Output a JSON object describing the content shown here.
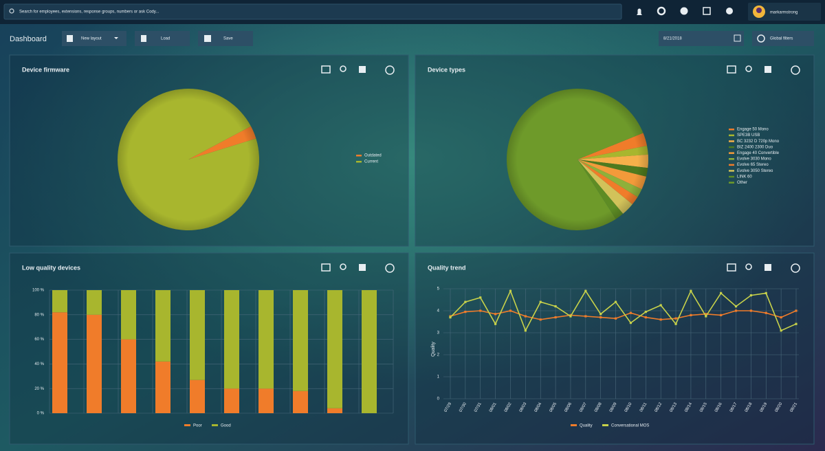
{
  "header": {
    "search_placeholder": "Search for employees, extensions, response groups, numbers or ask Cody...",
    "user_name": "markarmstrong"
  },
  "toolbar": {
    "title": "Dashboard",
    "new_layout": "New layout",
    "load": "Load",
    "save": "Save",
    "date": "8/21/2018",
    "global_filters": "Global filters"
  },
  "chart_data": [
    {
      "type": "pie",
      "title": "Device firmware",
      "categories": [
        "Outdated",
        "Current"
      ],
      "values": [
        3,
        97
      ],
      "colors": [
        "#f07c2a",
        "#a8b62e"
      ],
      "legend": "right"
    },
    {
      "type": "pie",
      "title": "Device types",
      "categories": [
        "Engage 50 Mono",
        "SPE3B USB",
        "BC 3232 D 720p Mono",
        "BIZ 2400 2300 Duo",
        "Engage 40 Convertible",
        "Evolve 3030 Mono",
        "Evolve 65 Stereo",
        "Evolve 3050 Stereo",
        "LINK 60",
        "Other"
      ],
      "values": [
        3,
        2,
        3,
        2,
        3,
        2,
        2,
        3,
        2,
        78
      ],
      "colors": [
        "#f07c2a",
        "#a8b62e",
        "#f6b04a",
        "#4f7a1e",
        "#f39a3a",
        "#8fb03a",
        "#f07c2a",
        "#d2c25a",
        "#5e8c24",
        "#6e9a2a"
      ],
      "legend": "right"
    },
    {
      "type": "bar",
      "title": "Low quality devices",
      "stacked": true,
      "series": [
        {
          "name": "Poor",
          "color": "#f07c2a",
          "values": [
            82,
            80,
            60,
            42,
            27,
            20,
            20,
            18,
            4,
            0
          ]
        },
        {
          "name": "Good",
          "color": "#a8b62e",
          "values": [
            18,
            20,
            40,
            58,
            73,
            80,
            80,
            82,
            96,
            100
          ]
        }
      ],
      "ylim": [
        0,
        100
      ],
      "yticks": [
        {
          "value": 0,
          "label": "0 %"
        },
        {
          "value": 20,
          "label": "20 %"
        },
        {
          "value": 40,
          "label": "40 %"
        },
        {
          "value": 60,
          "label": "60 %"
        },
        {
          "value": 80,
          "label": "80 %"
        },
        {
          "value": 100,
          "label": "100 %"
        }
      ],
      "grid": true,
      "legend": "bottom"
    },
    {
      "type": "line",
      "title": "Quality trend",
      "ylabel": "Quality",
      "categories": [
        "07/29",
        "07/30",
        "07/31",
        "08/01",
        "08/02",
        "08/03",
        "08/04",
        "08/05",
        "08/06",
        "08/07",
        "08/08",
        "08/09",
        "08/10",
        "08/11",
        "08/12",
        "08/13",
        "08/14",
        "08/15",
        "08/16",
        "08/17",
        "08/18",
        "08/19",
        "08/20",
        "08/21"
      ],
      "series": [
        {
          "name": "Quality",
          "color": "#f07c2a",
          "values": [
            3.75,
            3.95,
            4.0,
            3.85,
            4.0,
            3.75,
            3.6,
            3.7,
            3.8,
            3.75,
            3.7,
            3.65,
            3.9,
            3.7,
            3.6,
            3.65,
            3.8,
            3.85,
            3.8,
            4.0,
            4.0,
            3.9,
            3.7,
            4.0
          ]
        },
        {
          "name": "Conversational MOS",
          "color": "#c8d24a",
          "values": [
            3.7,
            4.4,
            4.6,
            3.4,
            4.9,
            3.1,
            4.4,
            4.2,
            3.75,
            4.9,
            3.85,
            4.4,
            3.45,
            3.95,
            4.25,
            3.4,
            4.9,
            3.75,
            4.8,
            4.2,
            4.7,
            4.8,
            3.1,
            3.4
          ]
        }
      ],
      "ylim": [
        0,
        5
      ],
      "yticks": [
        0,
        1,
        2,
        3,
        4,
        5
      ],
      "grid": true,
      "legend": "bottom"
    }
  ]
}
